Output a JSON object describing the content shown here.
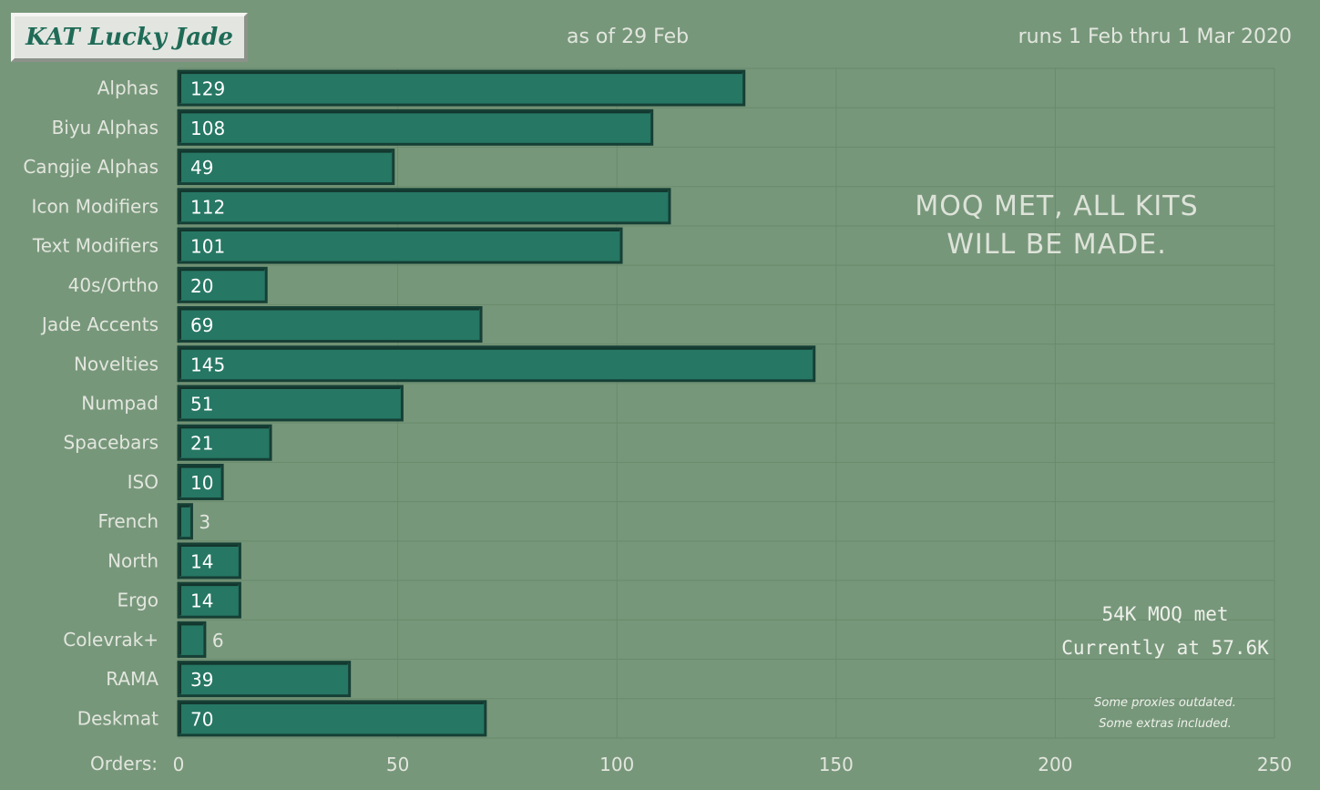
{
  "header": {
    "title": "KAT Lucky Jade",
    "as_of": "as of 29 Feb",
    "runs": "runs 1 Feb thru 1 Mar 2020"
  },
  "annotation": {
    "line1": "MOQ MET, ALL KITS",
    "line2": "WILL BE MADE."
  },
  "status": {
    "line1": "54K MOQ met",
    "line2": "Currently at 57.6K"
  },
  "note": {
    "line1": "Some proxies outdated.",
    "line2": "Some extras included."
  },
  "colors": {
    "background": "#77977a",
    "bar_fill": "#267764",
    "bar_dark": "#163f35",
    "grid": "#6a8a6d",
    "label_text": "#e2e6de"
  },
  "chart_data": {
    "type": "bar",
    "orientation": "horizontal",
    "categories": [
      "Alphas",
      "Biyu Alphas",
      "Cangjie Alphas",
      "Icon Modifiers",
      "Text Modifiers",
      "40s/Ortho",
      "Jade Accents",
      "Novelties",
      "Numpad",
      "Spacebars",
      "ISO",
      "French",
      "North",
      "Ergo",
      "Colevrak+",
      "RAMA",
      "Deskmat"
    ],
    "values": [
      129,
      108,
      49,
      112,
      101,
      20,
      69,
      145,
      51,
      21,
      10,
      3,
      14,
      14,
      6,
      39,
      70
    ],
    "xlabel": "Orders:",
    "xlim": [
      0,
      250
    ],
    "xticks": [
      0,
      50,
      100,
      150,
      200,
      250
    ],
    "grid": true
  }
}
